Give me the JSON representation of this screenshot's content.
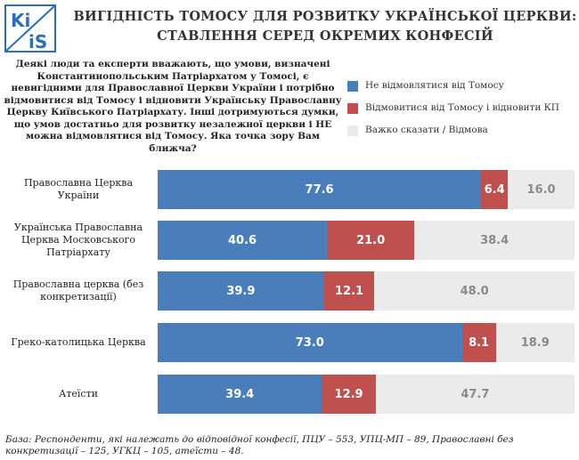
{
  "logo": [
    "Ki",
    "iS"
  ],
  "chart_data": {
    "type": "stacked-bar-horizontal",
    "title": "ВИГІДНІСТЬ ТОМОСУ ДЛЯ РОЗВИТКУ УКРАЇНСЬКОЇ ЦЕРКВИ:",
    "subtitle": "СТАВЛЕННЯ СЕРЕД ОКРЕМИХ КОНФЕСІЙ",
    "question": "Деякі люди та експерти вважають, що умови, визначені Константинопольським Патріархатом у Томосі, є невигідними для Православної Церкви України і потрібно відмовитися від Томосу і відновити Українську Православну Церкву Київського Патріархату. Інші дотримуються думки, що умов достатньо для розвитку незалежної церкви і НЕ можна відмовлятися від Томосу. Яка точка зору Вам ближча?",
    "categories": [
      "Православна Церква України",
      "Українська Православна Церква Московського Патріархату",
      "Православна церква (без конкретизації)",
      "Греко-католицька Церква",
      "Атеїсти"
    ],
    "series": [
      {
        "name": "Не відмовлятися від Томосу",
        "color": "#4a7ebb",
        "label_color": "#ffffff",
        "values": [
          77.6,
          40.6,
          39.9,
          73.0,
          39.4
        ],
        "value_labels": [
          "77.6",
          "40.6",
          "39.9",
          "73.0",
          "39.4"
        ]
      },
      {
        "name": "Відмовитися від Томосу і відновити КП",
        "color": "#c0504d",
        "label_color": "#ffffff",
        "values": [
          6.4,
          21.0,
          12.1,
          8.1,
          12.9
        ],
        "value_labels": [
          "6.4",
          "21.0",
          "12.1",
          "8.1",
          "12.9"
        ]
      },
      {
        "name": "Важко сказати / Відмова",
        "color": "#ebebeb",
        "label_color": "#8a8a8a",
        "values": [
          16.0,
          38.4,
          48.0,
          18.9,
          47.7
        ],
        "value_labels": [
          "16.0",
          "38.4",
          "48.0",
          "18.9",
          "47.7"
        ]
      }
    ],
    "footnote": "База: Респонденти, які належать до відповідної конфесії, ПЦУ – 553, УПЦ-МП – 89, Православні без конкретизації – 125, УГКЦ – 105, атеїсти – 48."
  }
}
